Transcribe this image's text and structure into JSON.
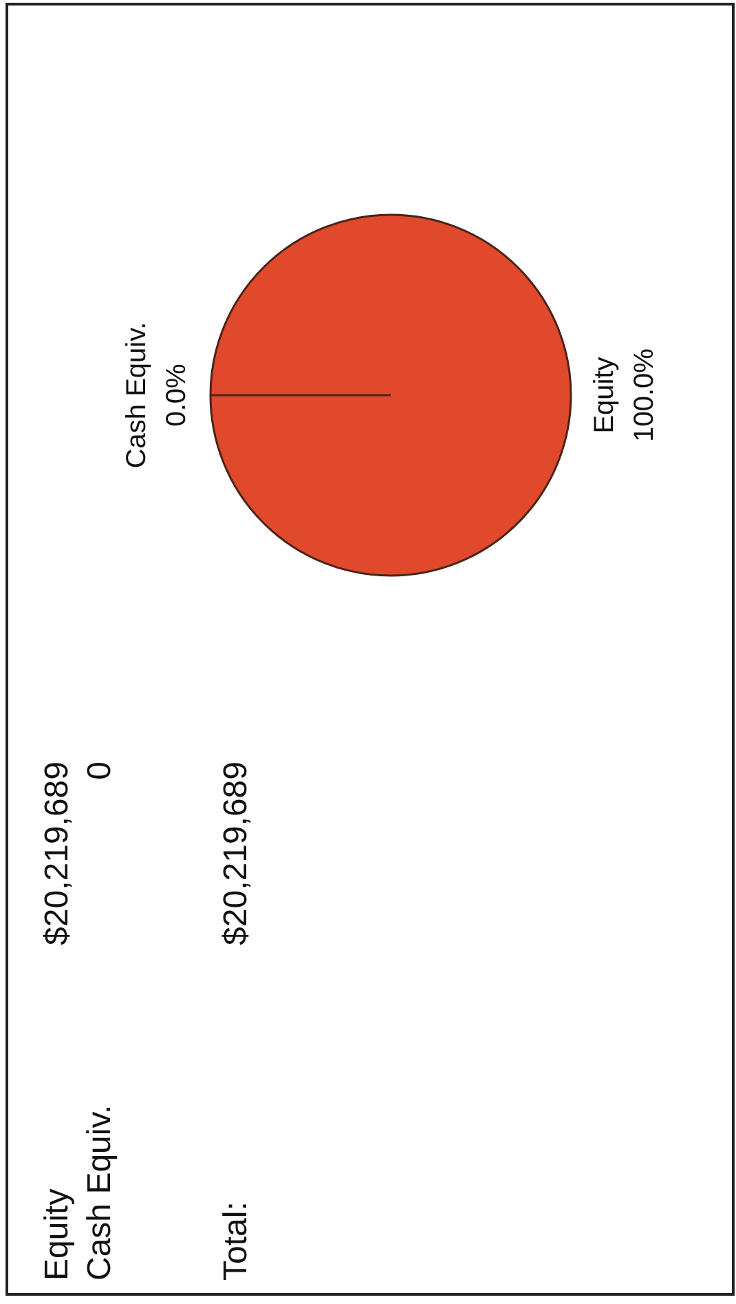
{
  "chart_data": {
    "type": "pie",
    "categories": [
      "Equity",
      "Cash Equiv."
    ],
    "values": [
      100.0,
      0.0
    ],
    "colors": [
      "#e0492b",
      "#e0492b"
    ],
    "value_labels": [
      "100.0%",
      "0.0%"
    ],
    "annotations": [
      "Equity",
      "$20,219,689",
      "Cash Equiv.",
      "0",
      "Total:",
      "$20,219,689"
    ]
  }
}
